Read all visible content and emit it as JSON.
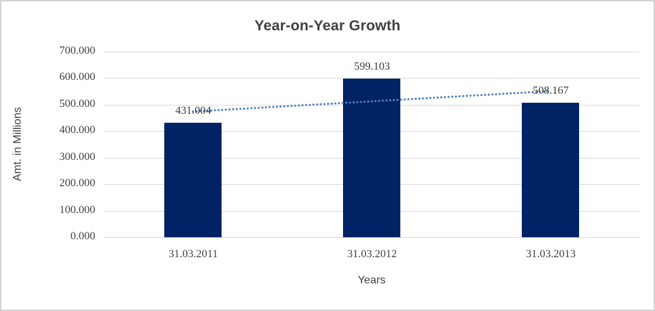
{
  "chart_data": {
    "type": "bar",
    "title": "Year-on-Year Growth",
    "xlabel": "Years",
    "ylabel": "Amt. in Millions",
    "categories": [
      "31.03.2011",
      "31.03.2012",
      "31.03.2013"
    ],
    "series": [
      {
        "name": "Amt. in Millions",
        "values": [
          431.004,
          599.103,
          508.167
        ]
      }
    ],
    "data_labels": [
      "431.004",
      "599.103",
      "508.167"
    ],
    "ylim": [
      0,
      700
    ],
    "ytick_step": 100,
    "ytick_labels": [
      "0.000",
      "100.000",
      "200.000",
      "300.000",
      "400.000",
      "500.000",
      "600.000",
      "700.000"
    ],
    "grid": true,
    "legend_position": "none",
    "trendline": {
      "type": "linear",
      "style": "dotted"
    },
    "colors": {
      "bar": "#002366",
      "trendline": "#4f81bd",
      "gridline": "#d9d9d9",
      "axis_text": "#3f3f3f",
      "title_text": "#404040",
      "frame_border": "#d2d2d2",
      "background": "#ffffff"
    }
  }
}
